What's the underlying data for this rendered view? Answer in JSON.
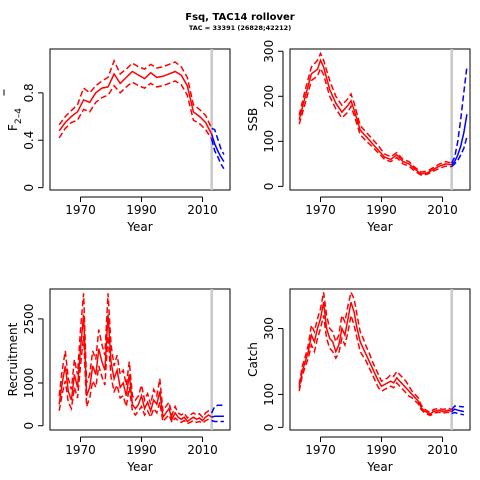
{
  "figure": {
    "title": "Fsq, TAC14 rollover",
    "subtitle": "TAC = 33391 (26828;42212)"
  },
  "chart_data": [
    {
      "type": "line",
      "ylabel_main": "F",
      "ylabel_sub": "2–4",
      "xlabel": "Year",
      "xlim": [
        1960,
        2019
      ],
      "ylim": [
        -0.02,
        1.17
      ],
      "xticks": [
        1970,
        1990,
        2010
      ],
      "yticks": [
        0.0,
        0.4,
        0.8
      ],
      "projection_start": 2013,
      "history": {
        "x": [
          1963,
          1965,
          1967,
          1969,
          1971,
          1973,
          1975,
          1977,
          1979,
          1981,
          1983,
          1985,
          1987,
          1989,
          1991,
          1993,
          1995,
          1997,
          1999,
          2001,
          2003,
          2005,
          2007,
          2009,
          2011,
          2013
        ],
        "mid": [
          0.48,
          0.55,
          0.6,
          0.64,
          0.74,
          0.72,
          0.8,
          0.84,
          0.85,
          0.96,
          0.88,
          0.93,
          0.98,
          0.95,
          0.92,
          0.97,
          0.93,
          0.94,
          0.96,
          0.98,
          0.95,
          0.86,
          0.64,
          0.6,
          0.55,
          0.45
        ],
        "upper": [
          0.53,
          0.6,
          0.65,
          0.7,
          0.84,
          0.8,
          0.86,
          0.9,
          0.93,
          1.07,
          0.96,
          1.0,
          1.05,
          1.02,
          1.0,
          1.04,
          1.01,
          1.02,
          1.04,
          1.06,
          1.02,
          0.93,
          0.7,
          0.66,
          0.61,
          0.5
        ],
        "lower": [
          0.42,
          0.5,
          0.55,
          0.57,
          0.66,
          0.64,
          0.72,
          0.76,
          0.78,
          0.86,
          0.8,
          0.85,
          0.89,
          0.86,
          0.84,
          0.88,
          0.85,
          0.86,
          0.88,
          0.9,
          0.87,
          0.78,
          0.57,
          0.54,
          0.49,
          0.41
        ]
      },
      "projection": {
        "x": [
          2013,
          2014,
          2015,
          2016,
          2017
        ],
        "mid": [
          0.45,
          0.37,
          0.31,
          0.26,
          0.22
        ],
        "upper": [
          0.5,
          0.49,
          0.41,
          0.33,
          0.28
        ],
        "lower": [
          0.41,
          0.31,
          0.26,
          0.2,
          0.16
        ]
      }
    },
    {
      "type": "line",
      "ylabel": "SSB",
      "xlabel": "Year",
      "xlim": [
        1960,
        2019
      ],
      "ylim": [
        -8,
        305
      ],
      "xticks": [
        1970,
        1990,
        2010
      ],
      "yticks": [
        0,
        100,
        200,
        300
      ],
      "projection_start": 2013,
      "history": {
        "x": [
          1963,
          1965,
          1967,
          1969,
          1970,
          1971,
          1973,
          1975,
          1977,
          1979,
          1980,
          1981,
          1983,
          1985,
          1987,
          1989,
          1991,
          1993,
          1995,
          1997,
          1999,
          2001,
          2003,
          2005,
          2007,
          2009,
          2011,
          2013
        ],
        "mid": [
          148,
          200,
          250,
          260,
          280,
          265,
          215,
          185,
          165,
          180,
          190,
          170,
          125,
          110,
          95,
          80,
          65,
          60,
          70,
          55,
          50,
          38,
          28,
          30,
          38,
          45,
          50,
          48
        ],
        "upper": [
          158,
          215,
          265,
          280,
          295,
          280,
          235,
          200,
          180,
          195,
          205,
          185,
          135,
          120,
          105,
          90,
          72,
          66,
          75,
          60,
          55,
          42,
          32,
          34,
          42,
          50,
          55,
          52
        ],
        "lower": [
          138,
          185,
          235,
          245,
          262,
          248,
          200,
          172,
          152,
          165,
          178,
          158,
          115,
          100,
          88,
          74,
          60,
          55,
          64,
          50,
          45,
          33,
          25,
          27,
          34,
          40,
          45,
          44
        ]
      },
      "projection": {
        "x": [
          2013,
          2014,
          2015,
          2016,
          2017,
          2018
        ],
        "mid": [
          48,
          55,
          70,
          90,
          120,
          160
        ],
        "upper": [
          52,
          65,
          100,
          150,
          210,
          265
        ],
        "lower": [
          44,
          50,
          58,
          70,
          85,
          110
        ]
      }
    },
    {
      "type": "line",
      "ylabel": "Recruitment",
      "xlabel": "Year",
      "xlim": [
        1960,
        2019
      ],
      "ylim": [
        -100,
        3200
      ],
      "xticks": [
        1970,
        1990,
        2010
      ],
      "yticks": [
        0,
        1000,
        2500
      ],
      "projection_start": 2013,
      "history": {
        "x": [
          1963,
          1964,
          1965,
          1966,
          1967,
          1968,
          1969,
          1970,
          1971,
          1972,
          1973,
          1974,
          1975,
          1976,
          1977,
          1978,
          1979,
          1980,
          1981,
          1982,
          1983,
          1984,
          1985,
          1986,
          1987,
          1988,
          1989,
          1990,
          1991,
          1992,
          1993,
          1994,
          1995,
          1996,
          1997,
          1998,
          1999,
          2000,
          2001,
          2002,
          2003,
          2004,
          2005,
          2006,
          2007,
          2008,
          2009,
          2010,
          2011,
          2012,
          2013
        ],
        "mid": [
          500,
          1000,
          1400,
          800,
          600,
          1200,
          900,
          1800,
          2600,
          700,
          900,
          1400,
          1200,
          1800,
          1500,
          1300,
          2600,
          1500,
          1100,
          1300,
          900,
          1000,
          700,
          1200,
          500,
          400,
          500,
          700,
          400,
          550,
          350,
          600,
          500,
          800,
          200,
          300,
          400,
          150,
          300,
          200,
          150,
          200,
          100,
          150,
          200,
          150,
          180,
          120,
          200,
          250,
          200
        ],
        "upper": [
          700,
          1300,
          1750,
          1100,
          850,
          1550,
          1200,
          2250,
          3100,
          1000,
          1200,
          1750,
          1550,
          2250,
          1900,
          1650,
          3100,
          1900,
          1400,
          1650,
          1200,
          1300,
          950,
          1500,
          700,
          600,
          700,
          950,
          600,
          750,
          500,
          850,
          700,
          1100,
          350,
          450,
          550,
          250,
          450,
          300,
          250,
          300,
          180,
          250,
          300,
          250,
          280,
          200,
          300,
          350,
          300
        ],
        "lower": [
          350,
          750,
          1050,
          550,
          400,
          900,
          650,
          1400,
          2100,
          450,
          650,
          1050,
          900,
          1400,
          1150,
          950,
          2100,
          1150,
          800,
          950,
          650,
          700,
          450,
          900,
          350,
          250,
          350,
          450,
          250,
          350,
          200,
          400,
          300,
          550,
          100,
          180,
          250,
          80,
          180,
          120,
          80,
          120,
          50,
          80,
          120,
          80,
          100,
          60,
          120,
          150,
          120
        ]
      },
      "projection": {
        "x": [
          2013,
          2014,
          2015,
          2016,
          2017
        ],
        "mid": [
          200,
          220,
          220,
          220,
          220
        ],
        "upper": [
          300,
          450,
          480,
          480,
          480
        ],
        "lower": [
          120,
          100,
          100,
          100,
          100
        ]
      }
    },
    {
      "type": "line",
      "ylabel": "Catch",
      "xlabel": "Year",
      "xlim": [
        1960,
        2019
      ],
      "ylim": [
        -8,
        420
      ],
      "xticks": [
        1970,
        1990,
        2010
      ],
      "yticks": [
        0,
        100,
        300
      ],
      "projection_start": 2013,
      "history": {
        "x": [
          1963,
          1964,
          1965,
          1966,
          1967,
          1968,
          1969,
          1970,
          1971,
          1972,
          1973,
          1974,
          1975,
          1976,
          1977,
          1978,
          1979,
          1980,
          1981,
          1982,
          1983,
          1984,
          1985,
          1986,
          1987,
          1988,
          1989,
          1990,
          1991,
          1992,
          1993,
          1994,
          1995,
          1996,
          1997,
          1998,
          1999,
          2000,
          2001,
          2002,
          2003,
          2004,
          2005,
          2006,
          2007,
          2008,
          2009,
          2010,
          2011,
          2012,
          2013
        ],
        "mid": [
          120,
          170,
          200,
          230,
          280,
          260,
          300,
          330,
          380,
          300,
          270,
          260,
          230,
          250,
          300,
          280,
          330,
          380,
          350,
          300,
          260,
          240,
          220,
          200,
          180,
          160,
          140,
          125,
          130,
          135,
          140,
          135,
          150,
          140,
          130,
          120,
          110,
          100,
          90,
          80,
          60,
          50,
          45,
          40,
          48,
          50,
          52,
          48,
          50,
          52,
          48
        ],
        "upper": [
          130,
          185,
          215,
          250,
          310,
          290,
          330,
          360,
          410,
          340,
          300,
          290,
          260,
          280,
          340,
          320,
          370,
          410,
          390,
          340,
          290,
          270,
          245,
          225,
          200,
          180,
          160,
          140,
          145,
          150,
          160,
          155,
          170,
          160,
          150,
          140,
          125,
          110,
          100,
          90,
          68,
          56,
          50,
          45,
          54,
          56,
          58,
          54,
          56,
          58,
          54
        ],
        "lower": [
          110,
          155,
          185,
          210,
          250,
          230,
          270,
          300,
          340,
          270,
          240,
          230,
          210,
          225,
          270,
          250,
          290,
          340,
          310,
          270,
          230,
          215,
          200,
          180,
          160,
          140,
          120,
          110,
          115,
          120,
          125,
          120,
          135,
          125,
          115,
          105,
          95,
          90,
          80,
          72,
          54,
          45,
          40,
          36,
          42,
          45,
          46,
          42,
          45,
          46,
          42
        ]
      },
      "projection": {
        "x": [
          2013,
          2014,
          2015,
          2016,
          2017
        ],
        "mid": [
          48,
          55,
          52,
          50,
          48
        ],
        "upper": [
          54,
          65,
          64,
          63,
          62
        ],
        "lower": [
          42,
          45,
          42,
          40,
          38
        ]
      }
    }
  ],
  "colors": {
    "history": "#ff0000",
    "projection": "#0000ff",
    "projection_line": "#c8c8c8",
    "axis": "#000000"
  }
}
